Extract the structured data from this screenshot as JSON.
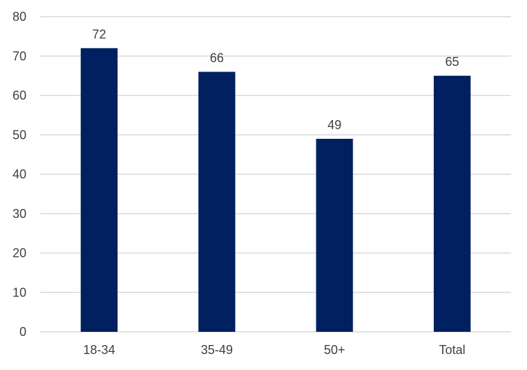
{
  "chart_data": {
    "type": "bar",
    "title": "",
    "xlabel": "",
    "ylabel": "",
    "categories": [
      "18-34",
      "35-49",
      "50+",
      "Total"
    ],
    "values": [
      72,
      66,
      49,
      65
    ],
    "data_labels": [
      "72",
      "66",
      "49",
      "65"
    ],
    "ylim": [
      0,
      80
    ],
    "yticks": [
      0,
      10,
      20,
      30,
      40,
      50,
      60,
      70,
      80
    ],
    "ytick_labels": [
      "0",
      "10",
      "20",
      "30",
      "40",
      "50",
      "60",
      "70",
      "80"
    ],
    "grid": true,
    "legend": "none",
    "colors": {
      "bar": "#002060",
      "grid": "#d9d9d9",
      "text": "#404040"
    }
  }
}
